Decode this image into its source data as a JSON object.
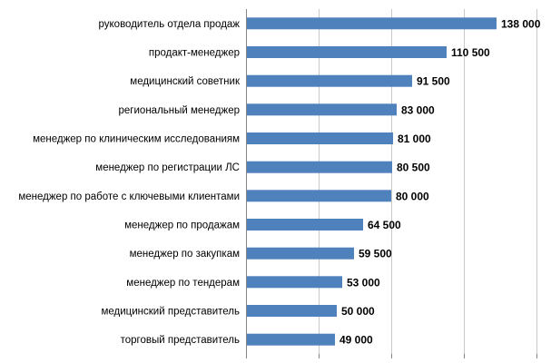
{
  "chart_data": {
    "type": "bar",
    "orientation": "horizontal",
    "categories": [
      "руководитель отдела продаж",
      "продакт-менеджер",
      "медицинский советник",
      "региональный менеджер",
      "менеджер по клиническим исследованиям",
      "менеджер по регистрации ЛС",
      "менеджер по работе с ключевыми клиентами",
      "менеджер по продажам",
      "менеджер по закупкам",
      "менеджер по тендерам",
      "медицинский представитель",
      "торговый представитель"
    ],
    "values": [
      138000,
      110500,
      91500,
      83000,
      81000,
      80500,
      80000,
      64500,
      59500,
      53000,
      50000,
      49000
    ],
    "value_labels": [
      "138 000",
      "110 500",
      "91 500",
      "83 000",
      "81 000",
      "80 500",
      "80 000",
      "64 500",
      "59 500",
      "53 000",
      "50 000",
      "49 000"
    ],
    "xlim": [
      0,
      160000
    ],
    "grid": true,
    "bar_color": "#4f81bd"
  }
}
